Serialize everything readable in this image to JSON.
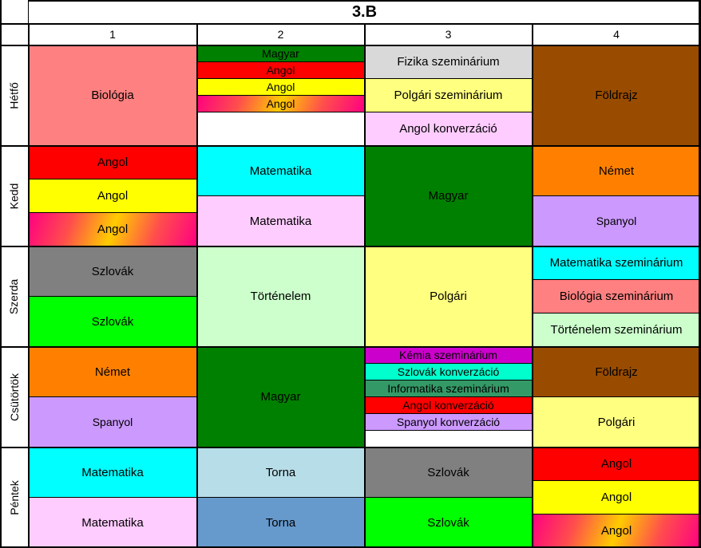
{
  "title": "3.B",
  "periods": [
    "1",
    "2",
    "3",
    "4"
  ],
  "days": [
    {
      "name": "Hétfő",
      "columns": [
        [
          {
            "label": "Biológia",
            "color": "#ff8080",
            "span": 12
          }
        ],
        [
          {
            "label": "Magyar",
            "color": "#008000",
            "span": 2
          },
          {
            "label": "Angol",
            "color": "#ff0000",
            "span": 2
          },
          {
            "label": "Angol",
            "color": "#ffff00",
            "span": 2
          },
          {
            "label": "Angol",
            "color": "gradient",
            "span": 2
          },
          {
            "label": "",
            "color": "#ffffff",
            "span": 4
          }
        ],
        [
          {
            "label": "Fizika szeminárium",
            "color": "#d9d9d9",
            "span": 4
          },
          {
            "label": "Polgári szeminárium",
            "color": "#ffff80",
            "span": 4
          },
          {
            "label": "Angol konverzáció",
            "color": "#ffccff",
            "span": 4
          }
        ],
        [
          {
            "label": "Földrajz",
            "color": "#994c00",
            "span": 12
          }
        ]
      ]
    },
    {
      "name": "Kedd",
      "columns": [
        [
          {
            "label": "Angol",
            "color": "#ff0000",
            "span": 4
          },
          {
            "label": "Angol",
            "color": "#ffff00",
            "span": 4
          },
          {
            "label": "Angol",
            "color": "gradient",
            "span": 4
          }
        ],
        [
          {
            "label": "Matematika",
            "color": "#00ffff",
            "span": 6
          },
          {
            "label": "Matematika",
            "color": "#ffccff",
            "span": 6
          }
        ],
        [
          {
            "label": "Magyar",
            "color": "#008000",
            "span": 12
          }
        ],
        [
          {
            "label": "Német",
            "color": "#ff8000",
            "span": 6
          },
          {
            "label": "Spanyol",
            "color": "#cc99ff",
            "span": 6
          }
        ]
      ]
    },
    {
      "name": "Szerda",
      "columns": [
        [
          {
            "label": "Szlovák",
            "color": "#808080",
            "span": 6
          },
          {
            "label": "Szlovák",
            "color": "#00ff00",
            "span": 6
          }
        ],
        [
          {
            "label": "Történelem",
            "color": "#ccffcc",
            "span": 12
          }
        ],
        [
          {
            "label": "Polgári",
            "color": "#ffff80",
            "span": 12
          }
        ],
        [
          {
            "label": "Matematika szeminárium",
            "color": "#00ffff",
            "span": 4
          },
          {
            "label": "Biológia szeminárium",
            "color": "#ff8080",
            "span": 4
          },
          {
            "label": "Történelem szeminárium",
            "color": "#ccffcc",
            "span": 4
          }
        ]
      ]
    },
    {
      "name": "Csütörtök",
      "columns": [
        [
          {
            "label": "Német",
            "color": "#ff8000",
            "span": 6
          },
          {
            "label": "Spanyol",
            "color": "#cc99ff",
            "span": 6
          }
        ],
        [
          {
            "label": "Magyar",
            "color": "#008000",
            "span": 12
          }
        ],
        [
          {
            "label": "Kémia szeminárium",
            "color": "#cc00cc",
            "span": 2
          },
          {
            "label": "Szlovák konverzáció",
            "color": "#00ffcc",
            "span": 2
          },
          {
            "label": "Informatika szeminárium",
            "color": "#339966",
            "span": 2
          },
          {
            "label": "Angol konverzáció",
            "color": "#ff0000",
            "span": 2
          },
          {
            "label": "Spanyol konverzáció",
            "color": "#cc99ff",
            "span": 2
          },
          {
            "label": "",
            "color": "#ffffff",
            "span": 2
          }
        ],
        [
          {
            "label": "Földrajz",
            "color": "#994c00",
            "span": 6
          },
          {
            "label": "Polgári",
            "color": "#ffff80",
            "span": 6
          }
        ]
      ]
    },
    {
      "name": "Péntek",
      "columns": [
        [
          {
            "label": "Matematika",
            "color": "#00ffff",
            "span": 6
          },
          {
            "label": "Matematika",
            "color": "#ffccff",
            "span": 6
          }
        ],
        [
          {
            "label": "Torna",
            "color": "#b7dde8",
            "span": 6
          },
          {
            "label": "Torna",
            "color": "#6699cc",
            "span": 6
          }
        ],
        [
          {
            "label": "Szlovák",
            "color": "#808080",
            "span": 6
          },
          {
            "label": "Szlovák",
            "color": "#00ff00",
            "span": 6
          }
        ],
        [
          {
            "label": "Angol",
            "color": "#ff0000",
            "span": 4
          },
          {
            "label": "Angol",
            "color": "#ffff00",
            "span": 4
          },
          {
            "label": "Angol",
            "color": "gradient",
            "span": 4
          }
        ]
      ]
    }
  ]
}
